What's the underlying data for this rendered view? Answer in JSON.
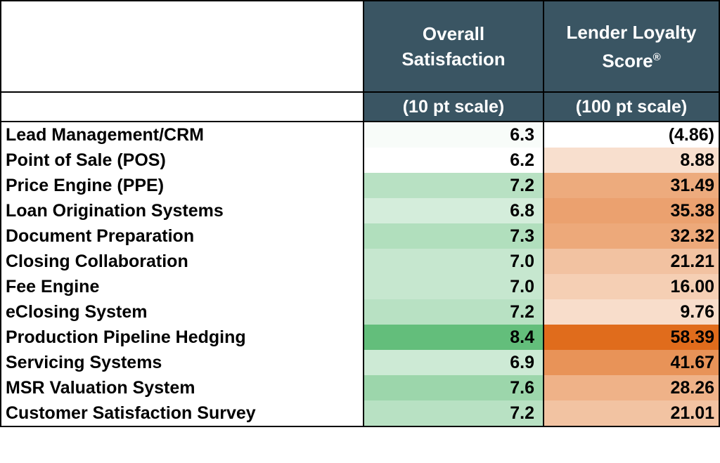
{
  "chart_data": {
    "type": "table",
    "columns": [
      {
        "line1": "Overall",
        "line2": "Satisfaction",
        "reg": "",
        "scale": "(10 pt scale)"
      },
      {
        "line1": "Lender Loyalty",
        "line2": "Score",
        "reg": "®",
        "scale": "(100 pt scale)"
      }
    ],
    "rows": [
      {
        "label": "Lead Management/CRM",
        "satisfaction": "6.3",
        "loyalty": "(4.86)",
        "sat_value": 6.3,
        "loy_value": -4.86
      },
      {
        "label": "Point of Sale (POS)",
        "satisfaction": "6.2",
        "loyalty": "8.88",
        "sat_value": 6.2,
        "loy_value": 8.88
      },
      {
        "label": "Price Engine (PPE)",
        "satisfaction": "7.2",
        "loyalty": "31.49",
        "sat_value": 7.2,
        "loy_value": 31.49
      },
      {
        "label": "Loan Origination Systems",
        "satisfaction": "6.8",
        "loyalty": "35.38",
        "sat_value": 6.8,
        "loy_value": 35.38
      },
      {
        "label": "Document Preparation",
        "satisfaction": "7.3",
        "loyalty": "32.32",
        "sat_value": 7.3,
        "loy_value": 32.32
      },
      {
        "label": "Closing Collaboration",
        "satisfaction": "7.0",
        "loyalty": "21.21",
        "sat_value": 7.0,
        "loy_value": 21.21
      },
      {
        "label": "Fee Engine",
        "satisfaction": "7.0",
        "loyalty": "16.00",
        "sat_value": 7.0,
        "loy_value": 16.0
      },
      {
        "label": "eClosing System",
        "satisfaction": "7.2",
        "loyalty": "9.76",
        "sat_value": 7.2,
        "loy_value": 9.76
      },
      {
        "label": "Production Pipeline Hedging",
        "satisfaction": "8.4",
        "loyalty": "58.39",
        "sat_value": 8.4,
        "loy_value": 58.39
      },
      {
        "label": "Servicing Systems",
        "satisfaction": "6.9",
        "loyalty": "41.67",
        "sat_value": 6.9,
        "loy_value": 41.67
      },
      {
        "label": "MSR Valuation System",
        "satisfaction": "7.6",
        "loyalty": "28.26",
        "sat_value": 7.6,
        "loy_value": 28.26
      },
      {
        "label": "Customer Satisfaction Survey",
        "satisfaction": "7.2",
        "loyalty": "21.01",
        "sat_value": 7.2,
        "loy_value": 21.01
      }
    ],
    "colors": {
      "header_bg": "#3a5563",
      "header_text": "#ffffff",
      "green_low": "#ffffff",
      "green_high": "#63be7b",
      "orange_low": "#ffffff",
      "orange_high": "#e06c1c"
    }
  }
}
